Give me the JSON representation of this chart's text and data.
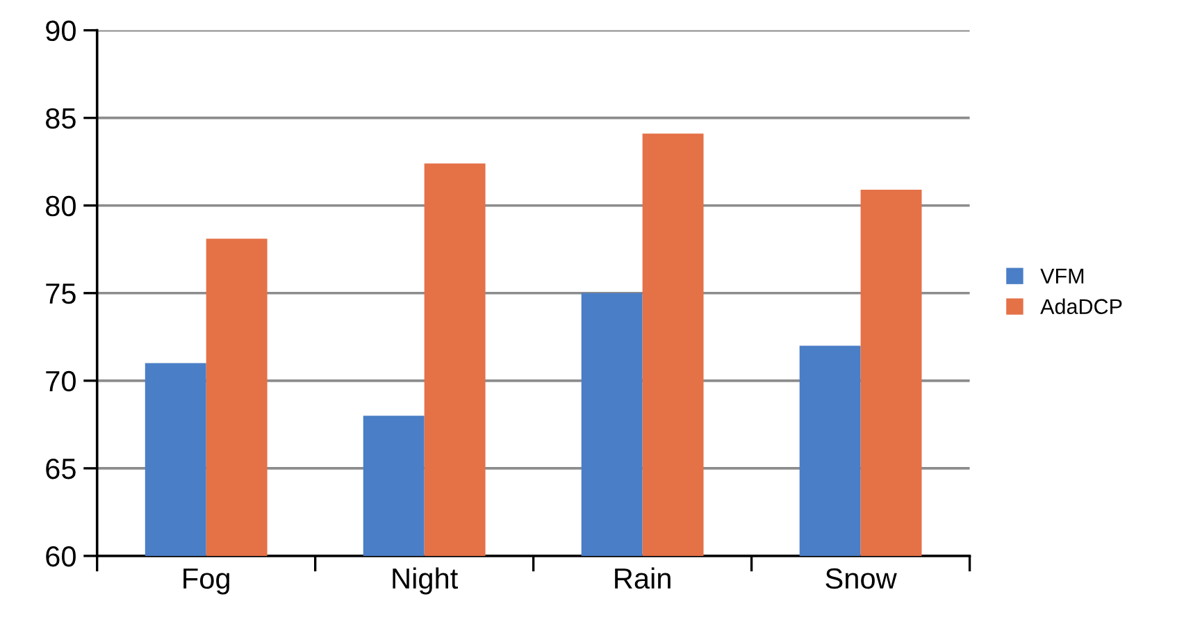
{
  "chart_data": {
    "type": "bar",
    "categories": [
      "Fog",
      "Night",
      "Rain",
      "Snow"
    ],
    "series": [
      {
        "name": "VFM",
        "color": "#4a7ec6",
        "values": [
          71.0,
          68.0,
          75.0,
          72.0
        ]
      },
      {
        "name": "AdaDCP",
        "color": "#e57147",
        "values": [
          78.1,
          82.4,
          84.1,
          80.9
        ]
      }
    ],
    "ylim": [
      60,
      90
    ],
    "yticks": [
      60,
      65,
      70,
      75,
      80,
      85,
      90
    ],
    "grid": "y",
    "legend": "right"
  }
}
